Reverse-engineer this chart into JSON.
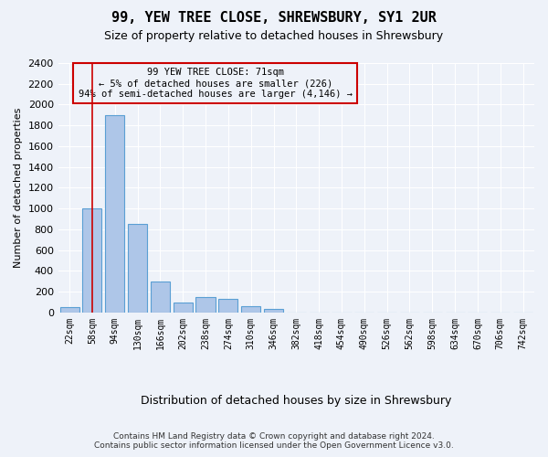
{
  "title": "99, YEW TREE CLOSE, SHREWSBURY, SY1 2UR",
  "subtitle": "Size of property relative to detached houses in Shrewsbury",
  "xlabel": "Distribution of detached houses by size in Shrewsbury",
  "ylabel": "Number of detached properties",
  "annotation_line1": "99 YEW TREE CLOSE: 71sqm",
  "annotation_line2": "← 5% of detached houses are smaller (226)",
  "annotation_line3": "94% of semi-detached houses are larger (4,146) →",
  "bin_labels": [
    "22sqm",
    "58sqm",
    "94sqm",
    "130sqm",
    "166sqm",
    "202sqm",
    "238sqm",
    "274sqm",
    "310sqm",
    "346sqm",
    "382sqm",
    "418sqm",
    "454sqm",
    "490sqm",
    "526sqm",
    "562sqm",
    "598sqm",
    "634sqm",
    "670sqm",
    "706sqm",
    "742sqm"
  ],
  "bar_values": [
    50,
    1000,
    1900,
    850,
    300,
    100,
    150,
    130,
    60,
    30,
    0,
    0,
    0,
    0,
    0,
    0,
    0,
    0,
    0,
    0,
    0
  ],
  "bar_color": "#aec6e8",
  "bar_edge_color": "#5a9fd4",
  "vline_x": 1.0,
  "ylim": [
    0,
    2400
  ],
  "yticks": [
    0,
    200,
    400,
    600,
    800,
    1000,
    1200,
    1400,
    1600,
    1800,
    2000,
    2200,
    2400
  ],
  "annotation_box_color": "#cc0000",
  "footer_line1": "Contains HM Land Registry data © Crown copyright and database right 2024.",
  "footer_line2": "Contains public sector information licensed under the Open Government Licence v3.0.",
  "bg_color": "#eef2f9",
  "grid_color": "#ffffff"
}
